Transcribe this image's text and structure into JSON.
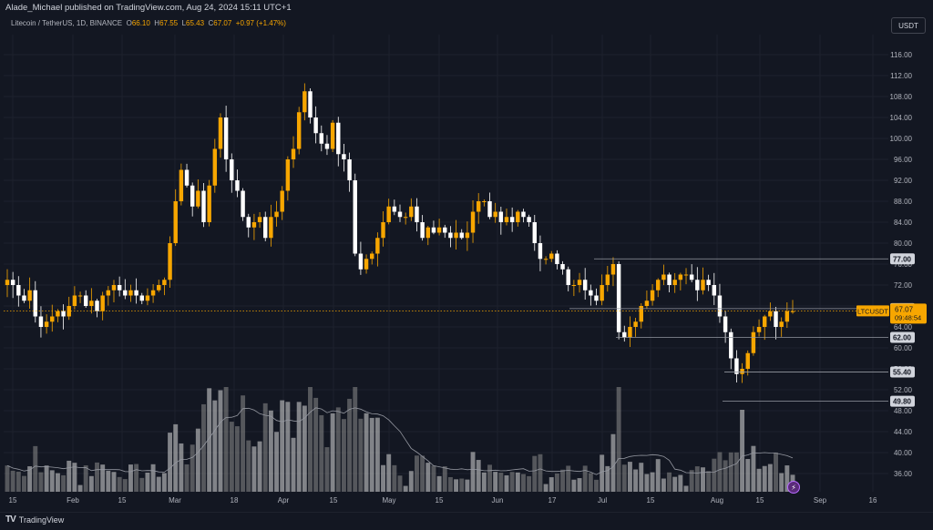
{
  "header": {
    "publisher": "Alade_Michael published on TradingView.com, Aug 24, 2024 15:11 UTC+1",
    "symbol_desc": "Litecoin / TetherUS, 1D, BINANCE",
    "ohlc": {
      "o": "66.10",
      "h": "67.55",
      "l": "65.43",
      "c": "67.07",
      "chg": "+0.97 (+1.47%)"
    },
    "unit_button": "USDT"
  },
  "footer": {
    "brand": "TradingView",
    "logo": "TV"
  },
  "colors": {
    "up": "#f7a600",
    "down": "#ffffff",
    "bg": "#131722",
    "grid": "#1e222d",
    "price_line": "#f7a600"
  },
  "chart_data": {
    "type": "candlestick",
    "symbol": "LTCUSDT",
    "interval": "1D",
    "ylim": [
      32,
      120
    ],
    "yticks": [
      "116.00",
      "112.00",
      "108.00",
      "104.00",
      "100.00",
      "96.00",
      "92.00",
      "88.00",
      "84.00",
      "80.00",
      "76.00",
      "72.00",
      "68.00",
      "64.00",
      "60.00",
      "56.00",
      "52.00",
      "48.00",
      "44.00",
      "40.00",
      "36.00"
    ],
    "x_ticks": [
      "15",
      "Feb",
      "15",
      "Mar",
      "18",
      "Apr",
      "15",
      "May",
      "15",
      "Jun",
      "17",
      "Jul",
      "15",
      "Aug",
      "15",
      "Sep",
      "16"
    ],
    "current_price": {
      "label": "LTCUSDT",
      "value": "67.07",
      "countdown": "09:48:54"
    },
    "levels": [
      {
        "value": 77.0,
        "label": "77.00"
      },
      {
        "value": 67.5,
        "label": "67.50"
      },
      {
        "value": 62.0,
        "label": "62.00"
      },
      {
        "value": 55.4,
        "label": "55.40"
      },
      {
        "value": 49.8,
        "label": "49.80"
      }
    ],
    "closes": [
      73,
      72,
      70,
      69,
      71,
      66,
      64,
      65,
      66,
      67,
      66,
      68,
      70,
      70,
      68,
      69,
      67,
      70,
      71,
      72,
      71,
      70,
      71,
      70,
      69,
      70,
      71,
      72,
      73,
      80,
      88,
      94,
      91,
      87,
      90,
      84,
      91,
      98,
      104,
      96,
      92,
      90,
      85,
      83,
      84,
      85,
      81,
      85,
      86,
      90,
      96,
      98,
      105,
      109,
      104,
      101,
      99,
      98,
      103,
      97,
      96,
      92,
      78,
      75,
      77,
      78,
      81,
      84,
      87,
      86,
      85,
      85,
      87,
      84,
      81,
      83,
      82,
      83,
      82,
      81,
      82,
      81,
      82,
      86,
      88,
      88,
      85,
      86,
      84,
      85,
      84,
      86,
      85,
      84,
      80,
      77,
      77,
      78,
      76,
      75,
      72,
      72,
      73,
      71,
      70,
      69,
      72,
      74,
      76,
      63,
      62,
      64,
      65,
      68,
      69,
      71,
      73,
      74,
      72,
      73,
      74,
      74,
      73,
      71,
      73,
      72,
      70,
      66,
      63,
      58,
      55,
      56,
      59,
      63,
      64,
      66,
      67,
      64,
      65,
      67,
      67
    ]
  }
}
